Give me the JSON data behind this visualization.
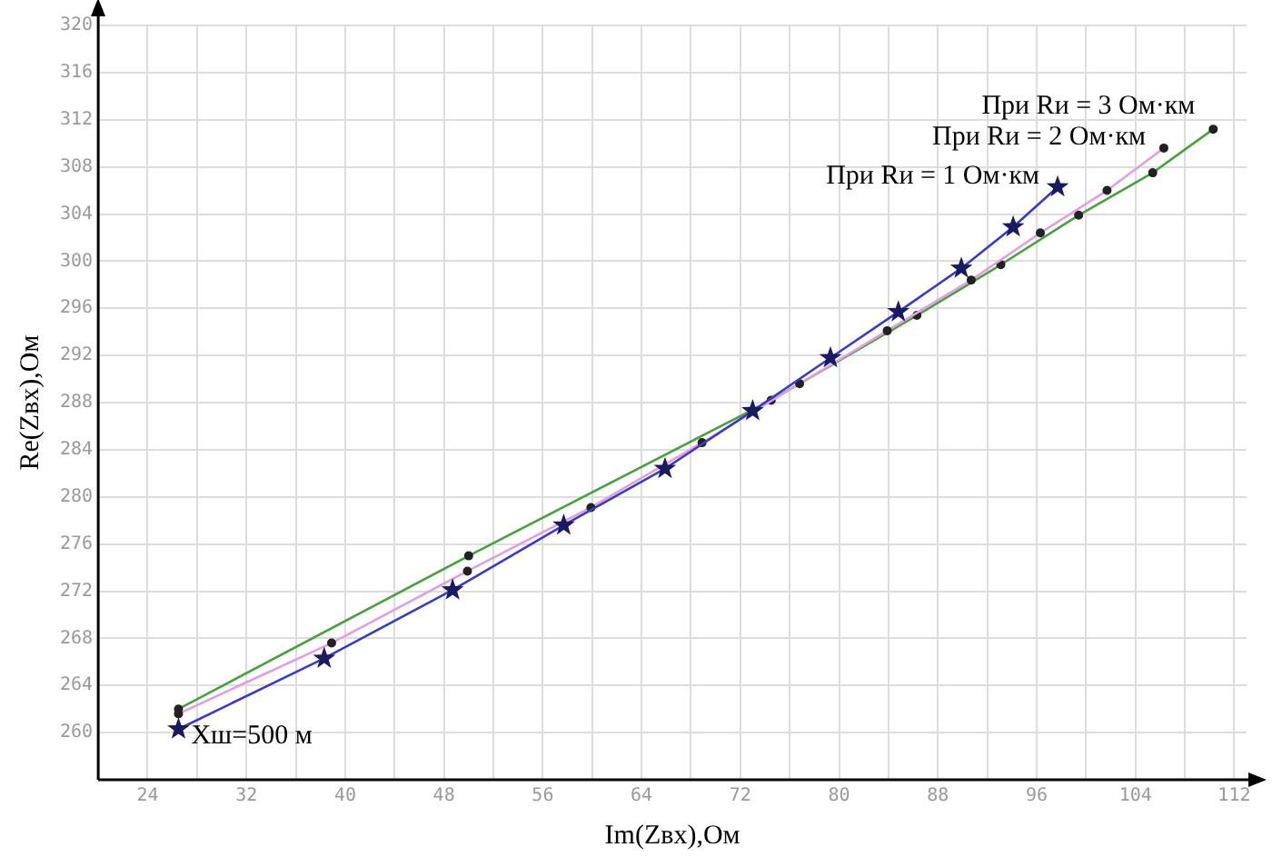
{
  "chart_data": {
    "type": "line",
    "xlabel": "Im(Zвх),Ом",
    "ylabel": "Re(Zвх),Ом",
    "xlim": [
      20,
      113
    ],
    "ylim": [
      256,
      320
    ],
    "xticks": [
      24,
      {
        "value": 28,
        "label": null
      },
      32,
      {
        "value": 36,
        "label": null
      },
      40,
      {
        "value": 44,
        "label": null
      },
      48,
      {
        "value": 52,
        "label": null
      },
      56,
      {
        "value": 60,
        "label": null
      },
      64,
      {
        "value": 68,
        "label": null
      },
      72,
      {
        "value": 76,
        "label": null
      },
      80,
      {
        "value": 84,
        "label": null
      },
      88,
      {
        "value": 92,
        "label": null
      },
      96,
      {
        "value": 100,
        "label": null
      },
      104,
      {
        "value": 108,
        "label": null
      },
      112
    ],
    "yticks": [
      260,
      264,
      268,
      272,
      276,
      280,
      284,
      288,
      292,
      296,
      300,
      304,
      308,
      312,
      316,
      320
    ],
    "grid": true,
    "legend": false,
    "series": [
      {
        "name": "При Rи = 1 Ом·км",
        "color": "#3a3ac8",
        "marker": "star",
        "x": [
          26.5,
          38.3,
          48.7,
          57.7,
          65.9,
          73.0,
          79.3,
          84.8,
          89.9,
          94.1,
          97.7
        ],
        "values": [
          260.3,
          266.3,
          272.1,
          277.6,
          282.4,
          287.3,
          291.8,
          295.7,
          299.4,
          302.9,
          306.3
        ]
      },
      {
        "name": "При Rи = 2 Ом·км",
        "color": "#e0a0e0",
        "marker": "circle",
        "x": [
          26.5,
          38.9,
          49.9,
          59.9,
          68.9,
          76.8,
          83.9,
          90.7,
          96.3,
          101.7,
          106.3
        ],
        "values": [
          261.6,
          267.6,
          273.7,
          279.1,
          284.6,
          289.6,
          294.1,
          298.4,
          302.4,
          306.0,
          309.6
        ]
      },
      {
        "name": "При Rи = 3 Ом·км",
        "color": "#4aa040",
        "marker": "circle",
        "x": [
          26.5,
          50.0,
          74.5,
          86.3,
          93.1,
          99.4,
          105.4,
          110.3
        ],
        "values": [
          262.0,
          275.0,
          288.2,
          295.4,
          299.7,
          303.9,
          307.5,
          311.2
        ]
      }
    ],
    "annotations": [
      {
        "text": "Хш=500 м",
        "x": 26.5,
        "y": 260.3
      }
    ]
  }
}
